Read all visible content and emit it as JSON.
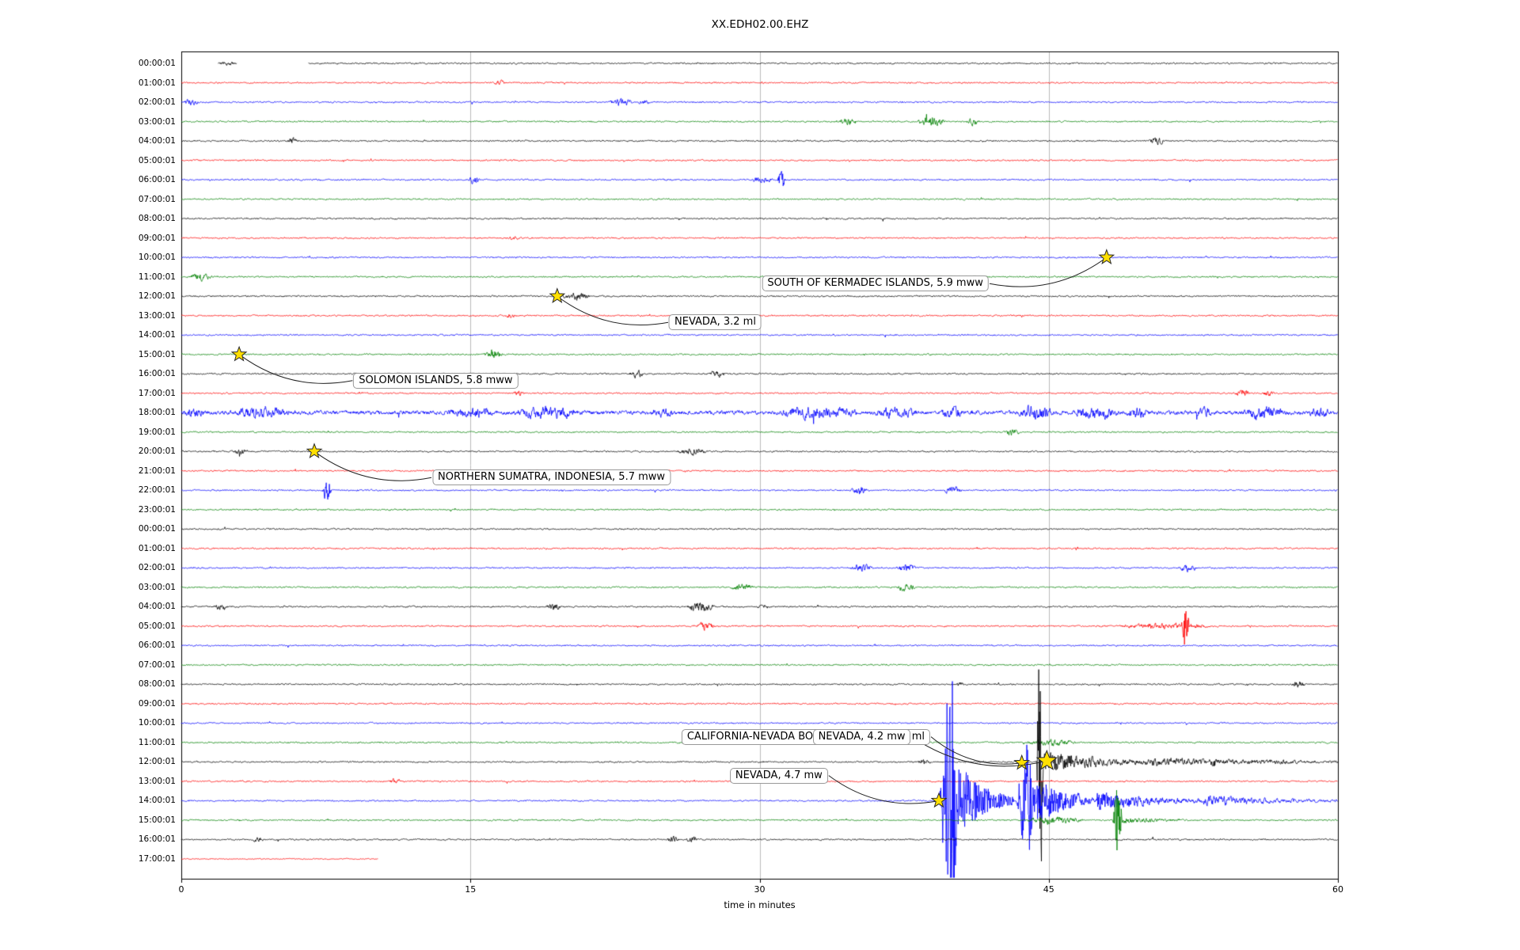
{
  "title": "XX.EDH02.00.EHZ",
  "chart_data": {
    "type": "line",
    "subtype": "seismogram-helicorder-dayplot",
    "station": "XX.EDH02.00.EHZ",
    "xlabel": "time in minutes",
    "x_range": [
      0,
      60
    ],
    "x_ticks": [
      0,
      15,
      30,
      45,
      60
    ],
    "x_ticks_labels": [
      "0",
      "15",
      "30",
      "45",
      "60"
    ],
    "grid": "vertical gridlines at 15, 30 and 45 minutes",
    "grid_color": "#bbbbbb",
    "color_cycle": [
      "black",
      "red",
      "blue",
      "green"
    ],
    "trace_colors": {
      "black": "#000000",
      "red": "#ff0000",
      "blue": "#0000ff",
      "green": "#008000"
    },
    "event_marker": {
      "shape": "star",
      "fill": "#ffdf00",
      "stroke": "#2a2a2a"
    },
    "annotation_box": {
      "bg": "#ffffff",
      "border": "#999999"
    },
    "rows": [
      {
        "label": "00:00:01",
        "segments": [
          [
            1.9,
            2.9
          ],
          [
            6.6,
            60
          ]
        ],
        "bursts": [
          [
            1.95,
            2.85,
            1.5,
            "s"
          ]
        ]
      },
      {
        "label": "01:00:01",
        "bursts": [
          [
            16.2,
            16.8,
            2.2,
            "s"
          ]
        ]
      },
      {
        "label": "02:00:01",
        "bursts": [
          [
            0.1,
            0.9,
            3,
            "s"
          ],
          [
            22.2,
            23.4,
            4,
            "s"
          ],
          [
            23.7,
            24.3,
            2.5,
            "s"
          ]
        ]
      },
      {
        "label": "03:00:01",
        "bursts": [
          [
            34.1,
            35.0,
            2.8,
            "s"
          ],
          [
            38.2,
            39.6,
            4.5,
            "s"
          ],
          [
            40.7,
            41.4,
            3,
            "s"
          ]
        ]
      },
      {
        "label": "04:00:01",
        "bursts": [
          [
            5.5,
            6.1,
            2.8,
            "s"
          ],
          [
            50.2,
            51.0,
            3.2,
            "s"
          ]
        ]
      },
      {
        "label": "05:00:01",
        "bursts": []
      },
      {
        "label": "06:00:01",
        "bursts": [
          [
            14.9,
            15.5,
            3.5,
            "s"
          ],
          [
            29.6,
            30.7,
            4,
            "s"
          ],
          [
            30.9,
            31.35,
            13,
            "sp"
          ]
        ]
      },
      {
        "label": "07:00:01",
        "bursts": []
      },
      {
        "label": "08:00:01",
        "bursts": []
      },
      {
        "label": "09:00:01",
        "bursts": [
          [
            17.0,
            17.5,
            1.8,
            "s"
          ]
        ]
      },
      {
        "label": "10:00:01",
        "bursts": []
      },
      {
        "label": "11:00:01",
        "bursts": [
          [
            0.4,
            1.6,
            3.5,
            "s"
          ]
        ]
      },
      {
        "label": "12:00:01",
        "bursts": [
          [
            19.7,
            21.2,
            3.5,
            "s"
          ]
        ]
      },
      {
        "label": "13:00:01",
        "bursts": [
          [
            16.8,
            17.4,
            2,
            "s"
          ]
        ]
      },
      {
        "label": "14:00:01",
        "bursts": []
      },
      {
        "label": "15:00:01",
        "bursts": [
          [
            15.7,
            16.7,
            4.5,
            "s"
          ]
        ]
      },
      {
        "label": "16:00:01",
        "bursts": [
          [
            23.2,
            24.0,
            3.5,
            "s"
          ],
          [
            27.4,
            28.2,
            3.5,
            "s"
          ]
        ]
      },
      {
        "label": "17:00:01",
        "bursts": [
          [
            17.2,
            17.8,
            2.5,
            "s"
          ],
          [
            54.7,
            55.4,
            3.5,
            "s"
          ],
          [
            56.1,
            56.7,
            2.5,
            "s"
          ]
        ]
      },
      {
        "label": "18:00:01",
        "base_amp": 2.2,
        "bursts": [
          [
            0.2,
            1.2,
            4,
            "s"
          ],
          [
            2.8,
            5.6,
            4.5,
            "s"
          ],
          [
            13.8,
            16.2,
            4,
            "s"
          ],
          [
            17.3,
            20.6,
            4.5,
            "s"
          ],
          [
            24.5,
            25.5,
            3,
            "s"
          ],
          [
            31.0,
            35.2,
            5,
            "s"
          ],
          [
            36.0,
            38.2,
            4,
            "s"
          ],
          [
            39.4,
            40.6,
            5,
            "s"
          ],
          [
            43.4,
            45.2,
            5.5,
            "s"
          ],
          [
            46.3,
            48.6,
            5,
            "s"
          ],
          [
            49.0,
            50.2,
            4,
            "s"
          ],
          [
            52.5,
            53.5,
            3.5,
            "s"
          ],
          [
            55.0,
            57.2,
            5,
            "s"
          ],
          [
            58.4,
            59.6,
            4,
            "s"
          ]
        ]
      },
      {
        "label": "19:00:01",
        "bursts": [
          [
            42.7,
            43.5,
            3,
            "s"
          ]
        ]
      },
      {
        "label": "20:00:01",
        "bursts": [
          [
            2.7,
            3.5,
            2.5,
            "s"
          ],
          [
            25.7,
            27.3,
            3,
            "s"
          ]
        ]
      },
      {
        "label": "21:00:01",
        "bursts": []
      },
      {
        "label": "22:00:01",
        "bursts": [
          [
            7.3,
            7.8,
            14,
            "sp"
          ],
          [
            34.7,
            35.7,
            3,
            "s"
          ],
          [
            39.5,
            40.5,
            3.5,
            "s"
          ]
        ]
      },
      {
        "label": "23:00:01",
        "bursts": []
      },
      {
        "label": "00:00:01",
        "bursts": []
      },
      {
        "label": "01:00:01",
        "bursts": []
      },
      {
        "label": "02:00:01",
        "bursts": [
          [
            34.7,
            35.9,
            3.5,
            "s"
          ],
          [
            37.1,
            38.1,
            4,
            "s"
          ],
          [
            51.7,
            52.7,
            3.5,
            "s"
          ]
        ]
      },
      {
        "label": "03:00:01",
        "bursts": [
          [
            28.5,
            29.7,
            3.5,
            "s"
          ],
          [
            37.1,
            38.1,
            3.5,
            "s"
          ]
        ]
      },
      {
        "label": "04:00:01",
        "bursts": [
          [
            1.7,
            2.5,
            3,
            "s"
          ],
          [
            18.9,
            19.7,
            3.5,
            "s"
          ],
          [
            26.2,
            27.7,
            4.5,
            "s"
          ],
          [
            29.9,
            30.5,
            2.5,
            "s"
          ]
        ]
      },
      {
        "label": "05:00:01",
        "bursts": [
          [
            26.7,
            27.7,
            3.5,
            "s"
          ],
          [
            48.6,
            53.6,
            2.5,
            "s"
          ],
          [
            51.85,
            52.35,
            26,
            "sp"
          ]
        ]
      },
      {
        "label": "06:00:01",
        "bursts": []
      },
      {
        "label": "07:00:01",
        "bursts": []
      },
      {
        "label": "08:00:01",
        "bursts": [
          [
            40.2,
            40.6,
            2,
            "s"
          ],
          [
            57.6,
            58.3,
            3,
            "s"
          ]
        ]
      },
      {
        "label": "09:00:01",
        "bursts": []
      },
      {
        "label": "10:00:01",
        "bursts": []
      },
      {
        "label": "11:00:01",
        "bursts": [
          [
            43.8,
            46.5,
            2.5,
            "s"
          ]
        ]
      },
      {
        "label": "12:00:01",
        "bursts": [
          [
            38.2,
            38.8,
            2.5,
            "s"
          ],
          [
            44.35,
            44.75,
            165,
            "sp"
          ],
          [
            44.75,
            50,
            13,
            "d"
          ],
          [
            50,
            60,
            4.5,
            "d"
          ],
          [
            53.3,
            53.8,
            6,
            "s"
          ],
          [
            45,
            60,
            2.2,
            "s"
          ]
        ]
      },
      {
        "label": "13:00:01",
        "bursts": [
          [
            10.8,
            11.4,
            2.5,
            "s"
          ]
        ]
      },
      {
        "label": "14:00:01",
        "bursts": [
          [
            39.3,
            40.5,
            160,
            "sp"
          ],
          [
            40.4,
            43.2,
            45,
            "d"
          ],
          [
            43.3,
            44.4,
            70,
            "sp"
          ],
          [
            44.4,
            47.5,
            30,
            "d"
          ],
          [
            47.5,
            53,
            12,
            "d"
          ],
          [
            53,
            60,
            6,
            "d"
          ]
        ]
      },
      {
        "label": "15:00:01",
        "bursts": [
          [
            43.8,
            46.8,
            3.5,
            "s"
          ],
          [
            48.3,
            48.85,
            40,
            "sp"
          ],
          [
            48.85,
            52,
            4,
            "d"
          ]
        ]
      },
      {
        "label": "16:00:01",
        "bursts": [
          [
            3.7,
            4.3,
            2.2,
            "s"
          ],
          [
            25.2,
            25.8,
            2.8,
            "s"
          ],
          [
            26.2,
            26.8,
            2.8,
            "s"
          ]
        ]
      },
      {
        "label": "17:00:01",
        "segments": [
          [
            0,
            10.2
          ]
        ],
        "base_amp": 0.55,
        "bursts": []
      }
    ],
    "events": [
      {
        "label": "SOUTH OF KERMADEC ISLANDS, 5.9 mww",
        "star_min": 48.0,
        "star_row": 10,
        "box_min": 36.0,
        "box_row": 11.35,
        "anchor": "right",
        "big": false,
        "z": 1
      },
      {
        "label": "NEVADA, 3.2 ml",
        "star_min": 19.5,
        "star_row": 12,
        "box_min": 27.7,
        "box_row": 13.35,
        "anchor": "left",
        "big": false,
        "z": 1
      },
      {
        "label": "SOLOMON ISLANDS, 5.8 mww",
        "star_min": 3.0,
        "star_row": 15,
        "box_min": 13.2,
        "box_row": 16.35,
        "anchor": "left",
        "big": false,
        "z": 1
      },
      {
        "label": "NORTHERN SUMATRA, INDONESIA, 5.7 mww",
        "star_min": 6.9,
        "star_row": 20,
        "box_min": 19.2,
        "box_row": 21.35,
        "anchor": "left",
        "big": false,
        "z": 1
      },
      {
        "label": "CALIFORNIA-NEVADA BORDER REGION, 3.9 ml",
        "star_min": 43.6,
        "star_row": 36.05,
        "box_min": 32.4,
        "box_row": 34.7,
        "anchor": "right",
        "big": false,
        "z": 1
      },
      {
        "label": "NEVADA, 4.2 mw",
        "star_min": 44.9,
        "star_row": 35.95,
        "box_min": 35.3,
        "box_row": 34.7,
        "anchor": "right",
        "big": true,
        "z": 2
      },
      {
        "label": "NEVADA, 4.7 mw",
        "star_min": 39.3,
        "star_row": 38.0,
        "box_min": 31.0,
        "box_row": 36.7,
        "anchor": "right",
        "big": false,
        "z": 1
      }
    ]
  }
}
